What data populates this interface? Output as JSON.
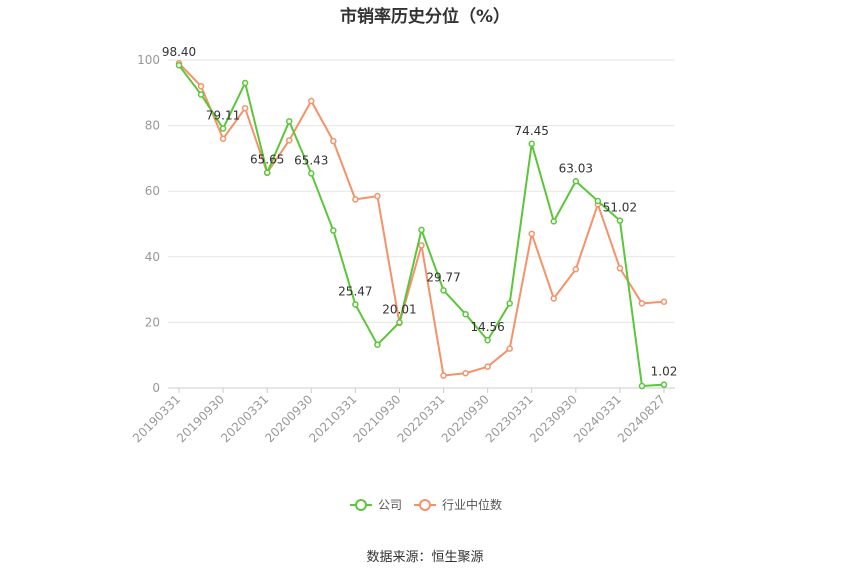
{
  "source": "数据来源：恒生聚源",
  "chart_data": {
    "type": "line",
    "title": "市销率历史分位（%）",
    "ylim": [
      0,
      100
    ],
    "yticks": [
      0,
      20,
      40,
      60,
      80,
      100
    ],
    "x": [
      "20190331",
      "20190630",
      "20190930",
      "20191231",
      "20200331",
      "20200630",
      "20200930",
      "20201231",
      "20210331",
      "20210630",
      "20210930",
      "20211231",
      "20220331",
      "20220630",
      "20220930",
      "20221231",
      "20230331",
      "20230630",
      "20230930",
      "20231231",
      "20240331",
      "20240630",
      "20240827"
    ],
    "x_tick_labels": [
      "20190331",
      "20190930",
      "20200331",
      "20200930",
      "20210331",
      "20210930",
      "20220331",
      "20220930",
      "20230331",
      "20230930",
      "20240331",
      "20240827"
    ],
    "series": [
      {
        "name": "公司",
        "color": "#5cc63b",
        "values": [
          98.4,
          89.5,
          79.11,
          93.0,
          65.65,
          81.3,
          65.43,
          48.0,
          25.47,
          13.2,
          20.01,
          48.2,
          29.77,
          22.5,
          14.56,
          25.8,
          74.45,
          50.8,
          63.03,
          57.0,
          51.02,
          0.6,
          1.02
        ],
        "data_labels": {
          "0": "98.40",
          "2": "79.11",
          "4": "65.65",
          "6": "65.43",
          "8": "25.47",
          "10": "20.01",
          "12": "29.77",
          "14": "14.56",
          "16": "74.45",
          "18": "63.03",
          "20": "51.02",
          "22": "1.02"
        }
      },
      {
        "name": "行业中位数",
        "color": "#f5926a",
        "values": [
          99.0,
          92.0,
          76.0,
          85.3,
          65.6,
          75.5,
          87.5,
          75.3,
          57.5,
          58.5,
          19.8,
          43.5,
          3.8,
          4.5,
          6.5,
          12.0,
          47.0,
          27.3,
          36.2,
          56.0,
          36.5,
          25.8,
          26.3
        ]
      }
    ],
    "legend_placement": "bottom-center",
    "grid": true
  }
}
